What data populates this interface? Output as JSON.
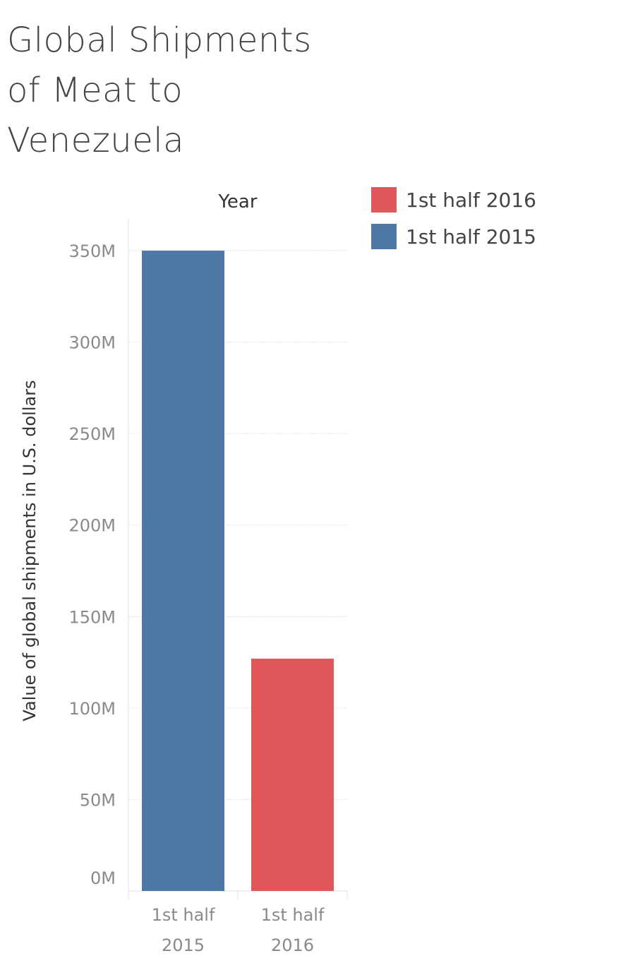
{
  "chart_data": {
    "type": "bar",
    "title": "Global Shipments of Meat to Venezuela",
    "column_header": "Year",
    "ylabel": "Value of global shipments in U.S. dollars",
    "xlabel": "",
    "ylim": [
      0,
      350000000
    ],
    "y_ticks": [
      {
        "value": 0,
        "label": "0M"
      },
      {
        "value": 50000000,
        "label": "50M"
      },
      {
        "value": 100000000,
        "label": "100M"
      },
      {
        "value": 150000000,
        "label": "150M"
      },
      {
        "value": 200000000,
        "label": "200M"
      },
      {
        "value": 250000000,
        "label": "250M"
      },
      {
        "value": 300000000,
        "label": "300M"
      },
      {
        "value": 350000000,
        "label": "350M"
      }
    ],
    "categories": [
      {
        "line1": "1st half",
        "line2": "2015"
      },
      {
        "line1": "1st half",
        "line2": "2016"
      }
    ],
    "values": [
      350000000,
      127000000
    ],
    "bar_colors": [
      "#4e79a7",
      "#e15759"
    ],
    "legend_position": "top-right",
    "legend": [
      {
        "label": "1st half  2016",
        "color": "#e15759"
      },
      {
        "label": "1st half 2015",
        "color": "#4e79a7"
      }
    ],
    "grid": true
  }
}
